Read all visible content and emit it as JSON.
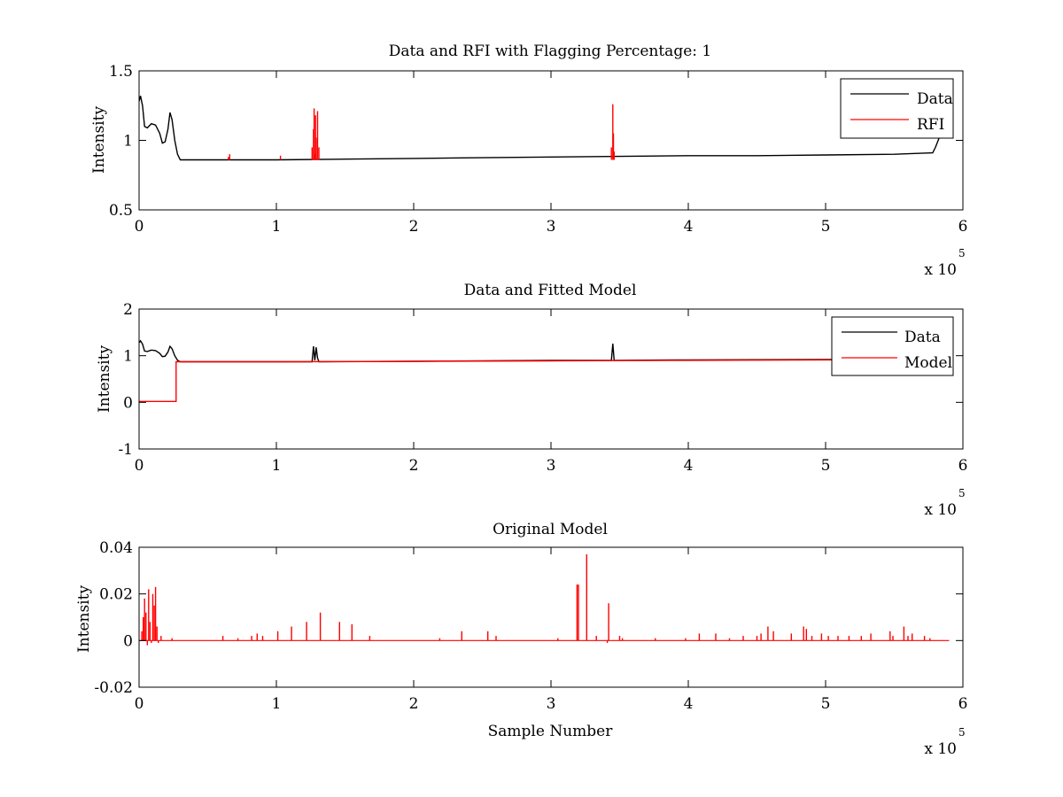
{
  "colors": {
    "data": "#000000",
    "red": "#ff0000",
    "axes": "#000000",
    "background": "#ffffff"
  },
  "x_multiplier": {
    "base": "x 10",
    "exponent": "5"
  },
  "chart_data": [
    {
      "type": "line",
      "title": "Data and RFI with Flagging Percentage: 1",
      "xlabel": "",
      "ylabel": "Intensity",
      "xlim": [
        0,
        600000
      ],
      "ylim": [
        0.5,
        1.5
      ],
      "xticks": [
        0,
        100000,
        200000,
        300000,
        400000,
        500000,
        600000
      ],
      "xtick_labels": [
        "0",
        "1",
        "2",
        "3",
        "4",
        "5",
        "6"
      ],
      "yticks": [
        0.5,
        1,
        1.5
      ],
      "ytick_labels": [
        "0.5",
        "1",
        "1.5"
      ],
      "legend": {
        "position": "top-right",
        "entries": [
          "Data",
          "RFI"
        ]
      },
      "series": [
        {
          "name": "Data",
          "color": "#000000",
          "style": "line",
          "x": [
            0,
            1000,
            2500,
            4000,
            6000,
            9000,
            12000,
            15000,
            17000,
            19000,
            21000,
            22500,
            24000,
            26000,
            28000,
            30000,
            50000,
            100000,
            150000,
            200000,
            250000,
            300000,
            350000,
            400000,
            450000,
            500000,
            550000,
            578000,
            580000,
            584000
          ],
          "y": [
            1.28,
            1.32,
            1.25,
            1.1,
            1.09,
            1.12,
            1.11,
            1.05,
            0.98,
            0.99,
            1.08,
            1.2,
            1.15,
            1.0,
            0.9,
            0.86,
            0.86,
            0.86,
            0.865,
            0.87,
            0.875,
            0.88,
            0.885,
            0.89,
            0.89,
            0.895,
            0.9,
            0.91,
            0.95,
            1.05
          ]
        },
        {
          "name": "RFI",
          "color": "#ff0000",
          "style": "spikes",
          "baseline": 0.86,
          "x": [
            65000,
            66000,
            103000,
            126000,
            127000,
            127500,
            128000,
            128500,
            129000,
            130000,
            131000,
            344000,
            345000,
            345500,
            346000
          ],
          "y": [
            0.88,
            0.9,
            0.89,
            0.95,
            1.08,
            1.23,
            0.9,
            1.18,
            1.02,
            1.21,
            0.95,
            0.95,
            1.26,
            1.05,
            0.92
          ]
        }
      ]
    },
    {
      "type": "line",
      "title": "Data and Fitted Model",
      "xlabel": "",
      "ylabel": "Intensity",
      "xlim": [
        0,
        600000
      ],
      "ylim": [
        -1,
        2
      ],
      "xticks": [
        0,
        100000,
        200000,
        300000,
        400000,
        500000,
        600000
      ],
      "xtick_labels": [
        "0",
        "1",
        "2",
        "3",
        "4",
        "5",
        "6"
      ],
      "yticks": [
        -1,
        0,
        1,
        2
      ],
      "ytick_labels": [
        "-1",
        "0",
        "1",
        "2"
      ],
      "legend": {
        "position": "top-right",
        "entries": [
          "Data",
          "Model"
        ]
      },
      "series": [
        {
          "name": "Data",
          "color": "#000000",
          "style": "line",
          "x": [
            0,
            1000,
            2500,
            4000,
            6000,
            9000,
            12000,
            15000,
            17000,
            19000,
            21000,
            22500,
            24000,
            26000,
            28000,
            30000,
            100000,
            126000,
            127000,
            128000,
            129000,
            130000,
            131000,
            200000,
            300000,
            344000,
            345000,
            346000,
            400000,
            500000,
            584000
          ],
          "y": [
            1.28,
            1.32,
            1.25,
            1.1,
            1.09,
            1.12,
            1.11,
            1.05,
            0.98,
            0.99,
            1.08,
            1.2,
            1.15,
            1.0,
            0.9,
            0.87,
            0.87,
            0.87,
            1.2,
            0.9,
            1.18,
            0.95,
            0.87,
            0.88,
            0.9,
            0.9,
            1.26,
            0.9,
            0.91,
            0.92,
            0.92
          ]
        },
        {
          "name": "Model",
          "color": "#ff0000",
          "style": "line",
          "x": [
            0,
            27000,
            27000,
            100000,
            200000,
            300000,
            400000,
            500000,
            584000
          ],
          "y": [
            0.02,
            0.02,
            0.87,
            0.87,
            0.88,
            0.89,
            0.9,
            0.91,
            0.91
          ]
        }
      ]
    },
    {
      "type": "line",
      "title": "Original Model",
      "xlabel": "Sample Number",
      "ylabel": "Intensity",
      "xlim": [
        0,
        600000
      ],
      "ylim": [
        -0.02,
        0.04
      ],
      "xticks": [
        0,
        100000,
        200000,
        300000,
        400000,
        500000,
        600000
      ],
      "xtick_labels": [
        "0",
        "1",
        "2",
        "3",
        "4",
        "5",
        "6"
      ],
      "yticks": [
        -0.02,
        0,
        0.02,
        0.04
      ],
      "ytick_labels": [
        "-0.02",
        "0",
        "0.02",
        "0.04"
      ],
      "legend": null,
      "series": [
        {
          "color": "#ff0000",
          "style": "spikes",
          "baseline": 0,
          "baseline_range": [
            0,
            590000
          ],
          "x": [
            2000,
            3000,
            4000,
            5000,
            6000,
            7000,
            8000,
            9000,
            10000,
            11000,
            12000,
            13000,
            14000,
            16000,
            24000,
            61000,
            72000,
            82000,
            86000,
            90000,
            101000,
            111000,
            122000,
            132000,
            146000,
            155000,
            168000,
            219000,
            235000,
            254000,
            260000,
            305000,
            319000,
            320000,
            326000,
            333000,
            341000,
            342000,
            350000,
            352000,
            376000,
            398000,
            408000,
            420000,
            430000,
            440000,
            450000,
            453000,
            458000,
            462000,
            475000,
            484000,
            486000,
            490000,
            497000,
            502000,
            509000,
            517000,
            526000,
            533000,
            547000,
            549000,
            557000,
            560000,
            563000,
            572000,
            576000
          ],
          "y": [
            0.004,
            0.01,
            0.018,
            0.012,
            -0.002,
            0.022,
            0.008,
            -0.001,
            0.02,
            0.015,
            0.023,
            0.006,
            -0.001,
            0.002,
            0.001,
            0.002,
            0.001,
            0.002,
            0.003,
            0.002,
            0.004,
            0.006,
            0.008,
            0.012,
            0.008,
            0.007,
            0.002,
            0.001,
            0.004,
            0.004,
            0.002,
            0.001,
            0.024,
            0.024,
            0.037,
            0.002,
            -0.001,
            0.016,
            0.002,
            0.001,
            0.001,
            0.001,
            0.003,
            0.003,
            0.001,
            0.002,
            0.002,
            0.003,
            0.006,
            0.004,
            0.003,
            0.006,
            0.005,
            0.002,
            0.003,
            0.002,
            0.002,
            0.002,
            0.002,
            0.003,
            0.004,
            0.002,
            0.006,
            0.002,
            0.003,
            0.002,
            0.001
          ]
        }
      ]
    }
  ]
}
